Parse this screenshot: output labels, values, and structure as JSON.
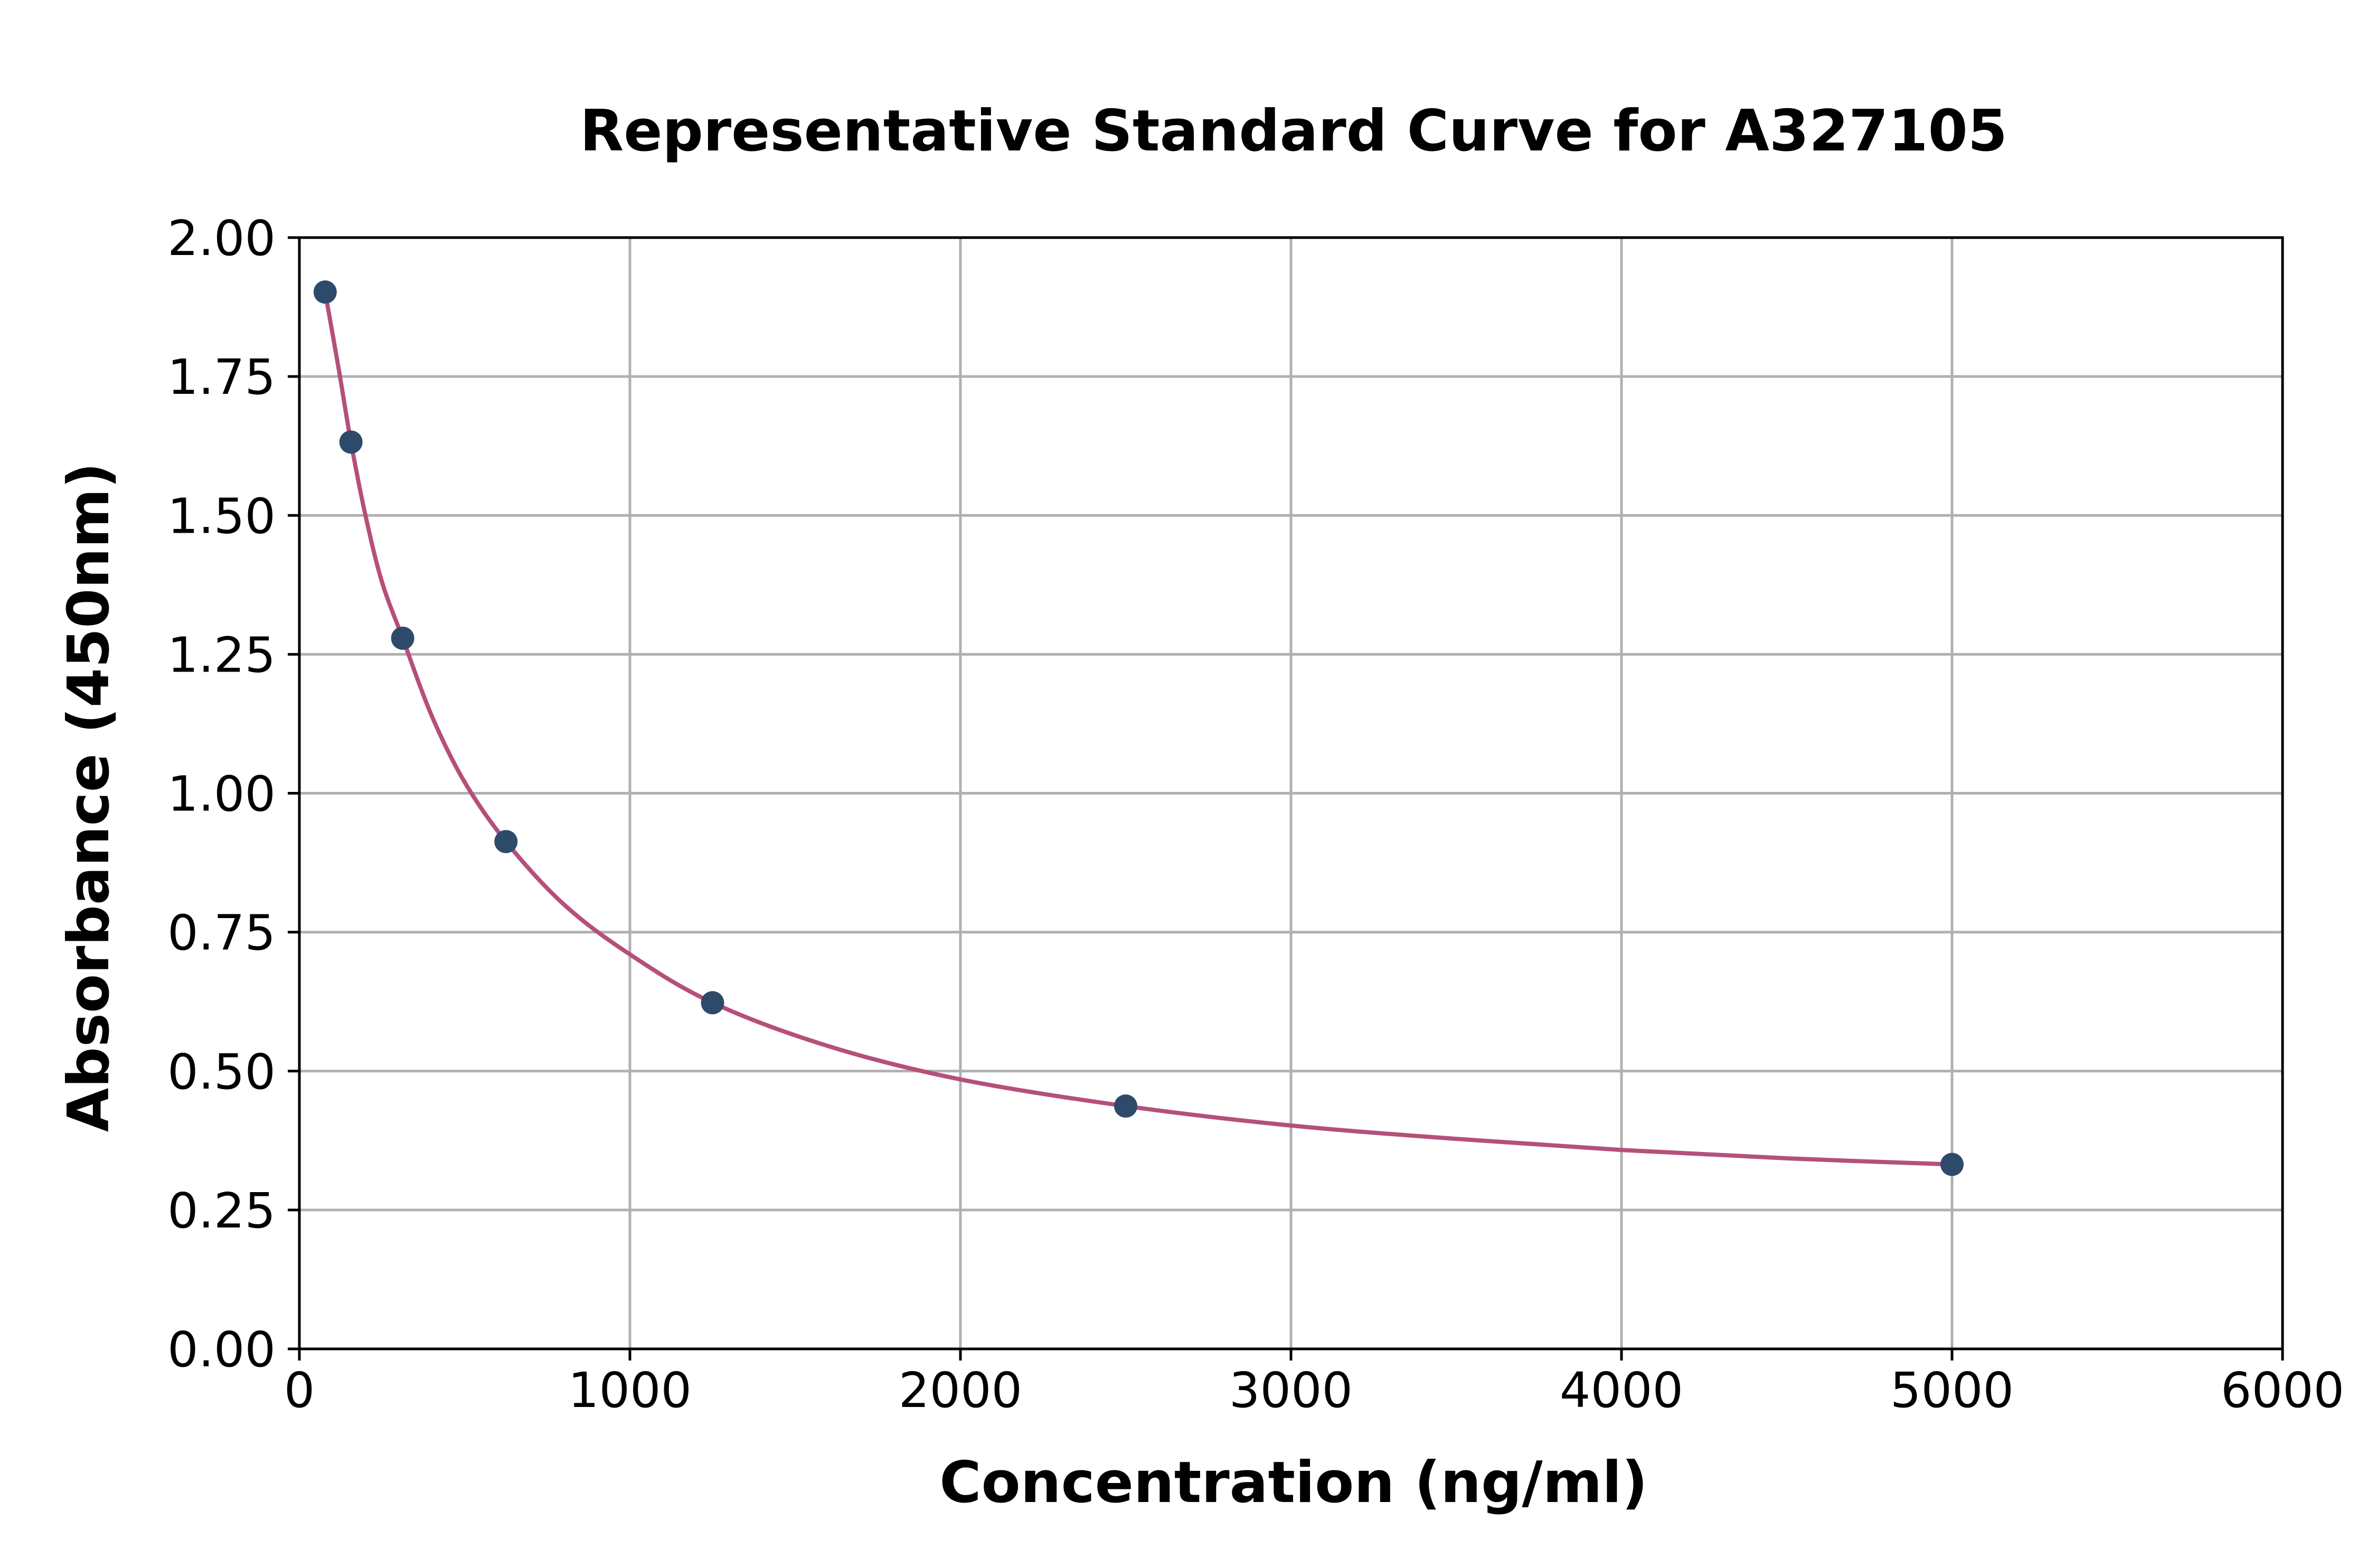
{
  "chart_data": {
    "type": "scatter",
    "title": "Representative Standard Curve for A327105",
    "xlabel": "Concentration (ng/ml)",
    "ylabel": "Absorbance (450nm)",
    "xlim": [
      0,
      6000
    ],
    "ylim": [
      0,
      2.0
    ],
    "x_ticks": [
      "0",
      "1000",
      "2000",
      "3000",
      "4000",
      "5000",
      "6000"
    ],
    "y_ticks": [
      "0.00",
      "0.25",
      "0.50",
      "0.75",
      "1.00",
      "1.25",
      "1.50",
      "1.75",
      "2.00"
    ],
    "grid": true,
    "series": [
      {
        "kind": "points",
        "color": "#2e4a6b",
        "x": [
          78,
          156,
          312.5,
          625,
          1250,
          2500,
          5000
        ],
        "y": [
          1.902,
          1.632,
          1.279,
          0.913,
          0.623,
          0.437,
          0.332
        ]
      },
      {
        "kind": "fitted-curve",
        "color": "#b5507a",
        "x": [
          78,
          120,
          156,
          200,
          250,
          312.5,
          400,
          500,
          625,
          800,
          1000,
          1250,
          1600,
          2000,
          2500,
          3000,
          3500,
          4000,
          4500,
          5000
        ],
        "y": [
          1.902,
          1.76,
          1.632,
          1.5,
          1.38,
          1.279,
          1.14,
          1.02,
          0.913,
          0.8,
          0.71,
          0.623,
          0.545,
          0.485,
          0.437,
          0.402,
          0.378,
          0.358,
          0.343,
          0.332
        ]
      }
    ]
  }
}
